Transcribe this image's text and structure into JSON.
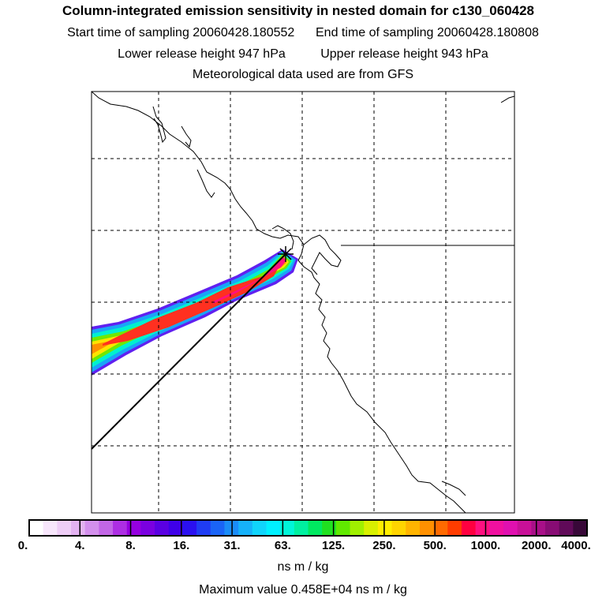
{
  "header": {
    "title": "Column-integrated emission sensitivity in nested domain for c130_060428",
    "start_label": "Start time of sampling 20060428.180552",
    "end_label": "End time of sampling 20060428.180808",
    "lower_label": "Lower release height  947 hPa",
    "upper_label": "Upper release height  943 hPa",
    "met_label": "Meteorological data used are from GFS"
  },
  "colorbar": {
    "labels": [
      "0.",
      "4.",
      "8.",
      "16.",
      "31.",
      "63.",
      "125.",
      "250.",
      "500.",
      "1000.",
      "2000.",
      "4000."
    ],
    "colors": [
      "#ffffff",
      "#f7e6fb",
      "#eecdf6",
      "#e3b2f1",
      "#d38fec",
      "#c266e6",
      "#ad2ee3",
      "#9500e0",
      "#7a00e0",
      "#5a00e2",
      "#3f00e8",
      "#2a10f0",
      "#1f3cf4",
      "#1a64f6",
      "#1a8cf7",
      "#16b1f9",
      "#10d4fb",
      "#00f0ff",
      "#00f5d8",
      "#00f0a0",
      "#00e860",
      "#20e020",
      "#60e800",
      "#a0f000",
      "#d8f000",
      "#ffee00",
      "#ffd400",
      "#ffb400",
      "#ff9000",
      "#ff6a00",
      "#ff3c00",
      "#ff0040",
      "#ff1080",
      "#f010a0",
      "#e010b0",
      "#c81098",
      "#a80f88",
      "#880c74",
      "#600a58",
      "#380838"
    ],
    "unit": "ns m / kg",
    "max_value_label": "Maximum value  0.458E+04 ns m / kg"
  },
  "map": {
    "release_point_marker": "star-marker",
    "grid_style": "dashed"
  }
}
